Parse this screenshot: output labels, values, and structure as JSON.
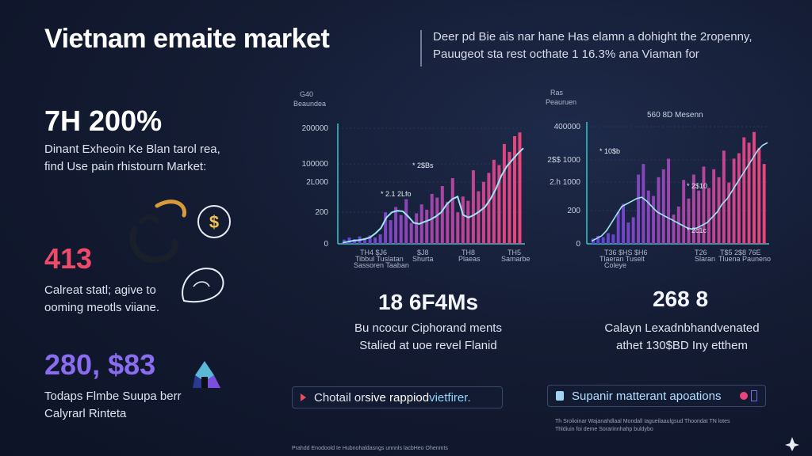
{
  "header": {
    "title": "Vietnam emaite market",
    "subtitle_line1": "Deer pd Bie ais nar hane Has elamn a dohight the 2ropenny,",
    "subtitle_line2": "Pauugeot sta rest octhate 1 16.3% ana Viaman for"
  },
  "stats": [
    {
      "value": "7H  200%",
      "color": "#ffffff",
      "line1": "Dinant Exheoin Ke Blan tarol rea,",
      "line2": "find Use pain rhistourn Market:",
      "icon": "dollar-icon"
    },
    {
      "value": "413",
      "color": "#ee4a6a",
      "line1": "Calreat statl;  agive to",
      "line2": "ooming meotls viiane.",
      "icon": "hand-coin-icon"
    },
    {
      "value": "280, $83",
      "color": "#8a6cf0",
      "line1": "Todaps Flmbe Suupa berr",
      "line2": "Calyrarl Rinteta",
      "icon": "ethereum-icon"
    }
  ],
  "chart_left": {
    "y_unit_top": "G40",
    "y_unit_bottom": "Beaundea",
    "y_ticks": [
      "200000",
      "100000",
      "2L000",
      "200",
      "0"
    ],
    "annotations": [
      "* 2$Bs",
      "* 2.1 2Lfo"
    ],
    "x_label_groups": [
      {
        "line1": "TH4   $J6",
        "line2": "Tibbul Tuslatan",
        "line3": "Sassoren Taaban"
      },
      {
        "line1": "$J8",
        "line2": "Shurta",
        "line3": ""
      },
      {
        "line1": "TH8",
        "line2": "Plaeas",
        "line3": ""
      },
      {
        "line1": "TH5",
        "line2": "Samarbe",
        "line3": ""
      }
    ],
    "big_value": "18 6F4Ms",
    "desc_line1": "Bu ncocur Ciphorand ments",
    "desc_line2": "Stalied at uoe revel Flanid"
  },
  "chart_right": {
    "y_unit_top": "Ras",
    "y_unit_bottom": "Peauruen",
    "legend_text": "560 8D Mesenn",
    "y_ticks": [
      "400000",
      "2$$ 1000",
      "2.h  1000",
      "200",
      "0"
    ],
    "annotations": [
      "* 10$b",
      "* 2$10",
      "* 2c1c"
    ],
    "x_label_groups": [
      {
        "line1": "T36  $HS  $H6",
        "line2": "Tlaeran Tuselt",
        "line3": "Coleye"
      },
      {
        "line1": "T26",
        "line2": "Slaran",
        "line3": ""
      },
      {
        "line1": "T$5  2$8  76E",
        "line2": "Tluena  Pauneno",
        "line3": ""
      }
    ],
    "big_value": "268 8",
    "desc_line1": "Calayn Lexadnbhandvenated",
    "desc_line2": "athet 130$BD Iny etthem"
  },
  "pills": {
    "left_text_1": "Chotail or ",
    "left_text_2": "sive rappiod",
    "left_text_3": " vietfirer.",
    "right_text": "Supanir matterant apoations"
  },
  "footnotes": {
    "right_line1": "Th Srolioinar Wajanahdlaal Mondall Iagueilaaulgsud Thoondat TN lotes",
    "right_line2": "Thldiuin foi deme Sorarinnhahp buldybo",
    "bottom": "Prahdd Enodoold Ie Hubnohaldasngs unnnls lacbHeo Ohenmts"
  },
  "colors": {
    "accent_pink": "#e8457a",
    "accent_purple": "#6a4ee0",
    "line_cyan": "#9fe6f2",
    "axis_teal": "#37c6c6"
  },
  "chart_data": [
    {
      "type": "bar",
      "ylim": [
        0,
        220000
      ],
      "values": [
        8000,
        12000,
        9000,
        14000,
        10000,
        16000,
        12000,
        18000,
        60000,
        45000,
        70000,
        55000,
        85000,
        40000,
        58000,
        75000,
        65000,
        95000,
        88000,
        110000,
        80000,
        125000,
        60000,
        90000,
        82000,
        140000,
        100000,
        118000,
        135000,
        160000,
        150000,
        190000,
        175000,
        205000,
        212000
      ],
      "trend": [
        2000,
        4000,
        6000,
        7000,
        9000,
        12000,
        20000,
        30000,
        50000,
        60000,
        63000,
        62000,
        52000,
        40000,
        38000,
        42000,
        46000,
        52000,
        60000,
        75000,
        85000,
        90000,
        55000,
        50000,
        55000,
        62000,
        70000,
        85000,
        105000,
        130000,
        148000,
        160000,
        172000,
        182000
      ]
    },
    {
      "type": "bar",
      "ylim": [
        0,
        440000
      ],
      "values": [
        20000,
        30000,
        25000,
        40000,
        35000,
        120000,
        150000,
        80000,
        100000,
        260000,
        300000,
        200000,
        180000,
        250000,
        280000,
        320000,
        110000,
        140000,
        240000,
        170000,
        260000,
        200000,
        290000,
        210000,
        280000,
        250000,
        350000,
        230000,
        320000,
        340000,
        400000,
        380000,
        420000,
        360000,
        300000
      ],
      "trend": [
        10000,
        20000,
        30000,
        50000,
        80000,
        110000,
        140000,
        150000,
        160000,
        170000,
        175000,
        160000,
        140000,
        120000,
        110000,
        100000,
        90000,
        80000,
        70000,
        60000,
        55000,
        60000,
        70000,
        80000,
        100000,
        120000,
        150000,
        170000,
        200000,
        230000,
        260000,
        290000,
        320000,
        350000,
        370000,
        380000
      ]
    }
  ]
}
